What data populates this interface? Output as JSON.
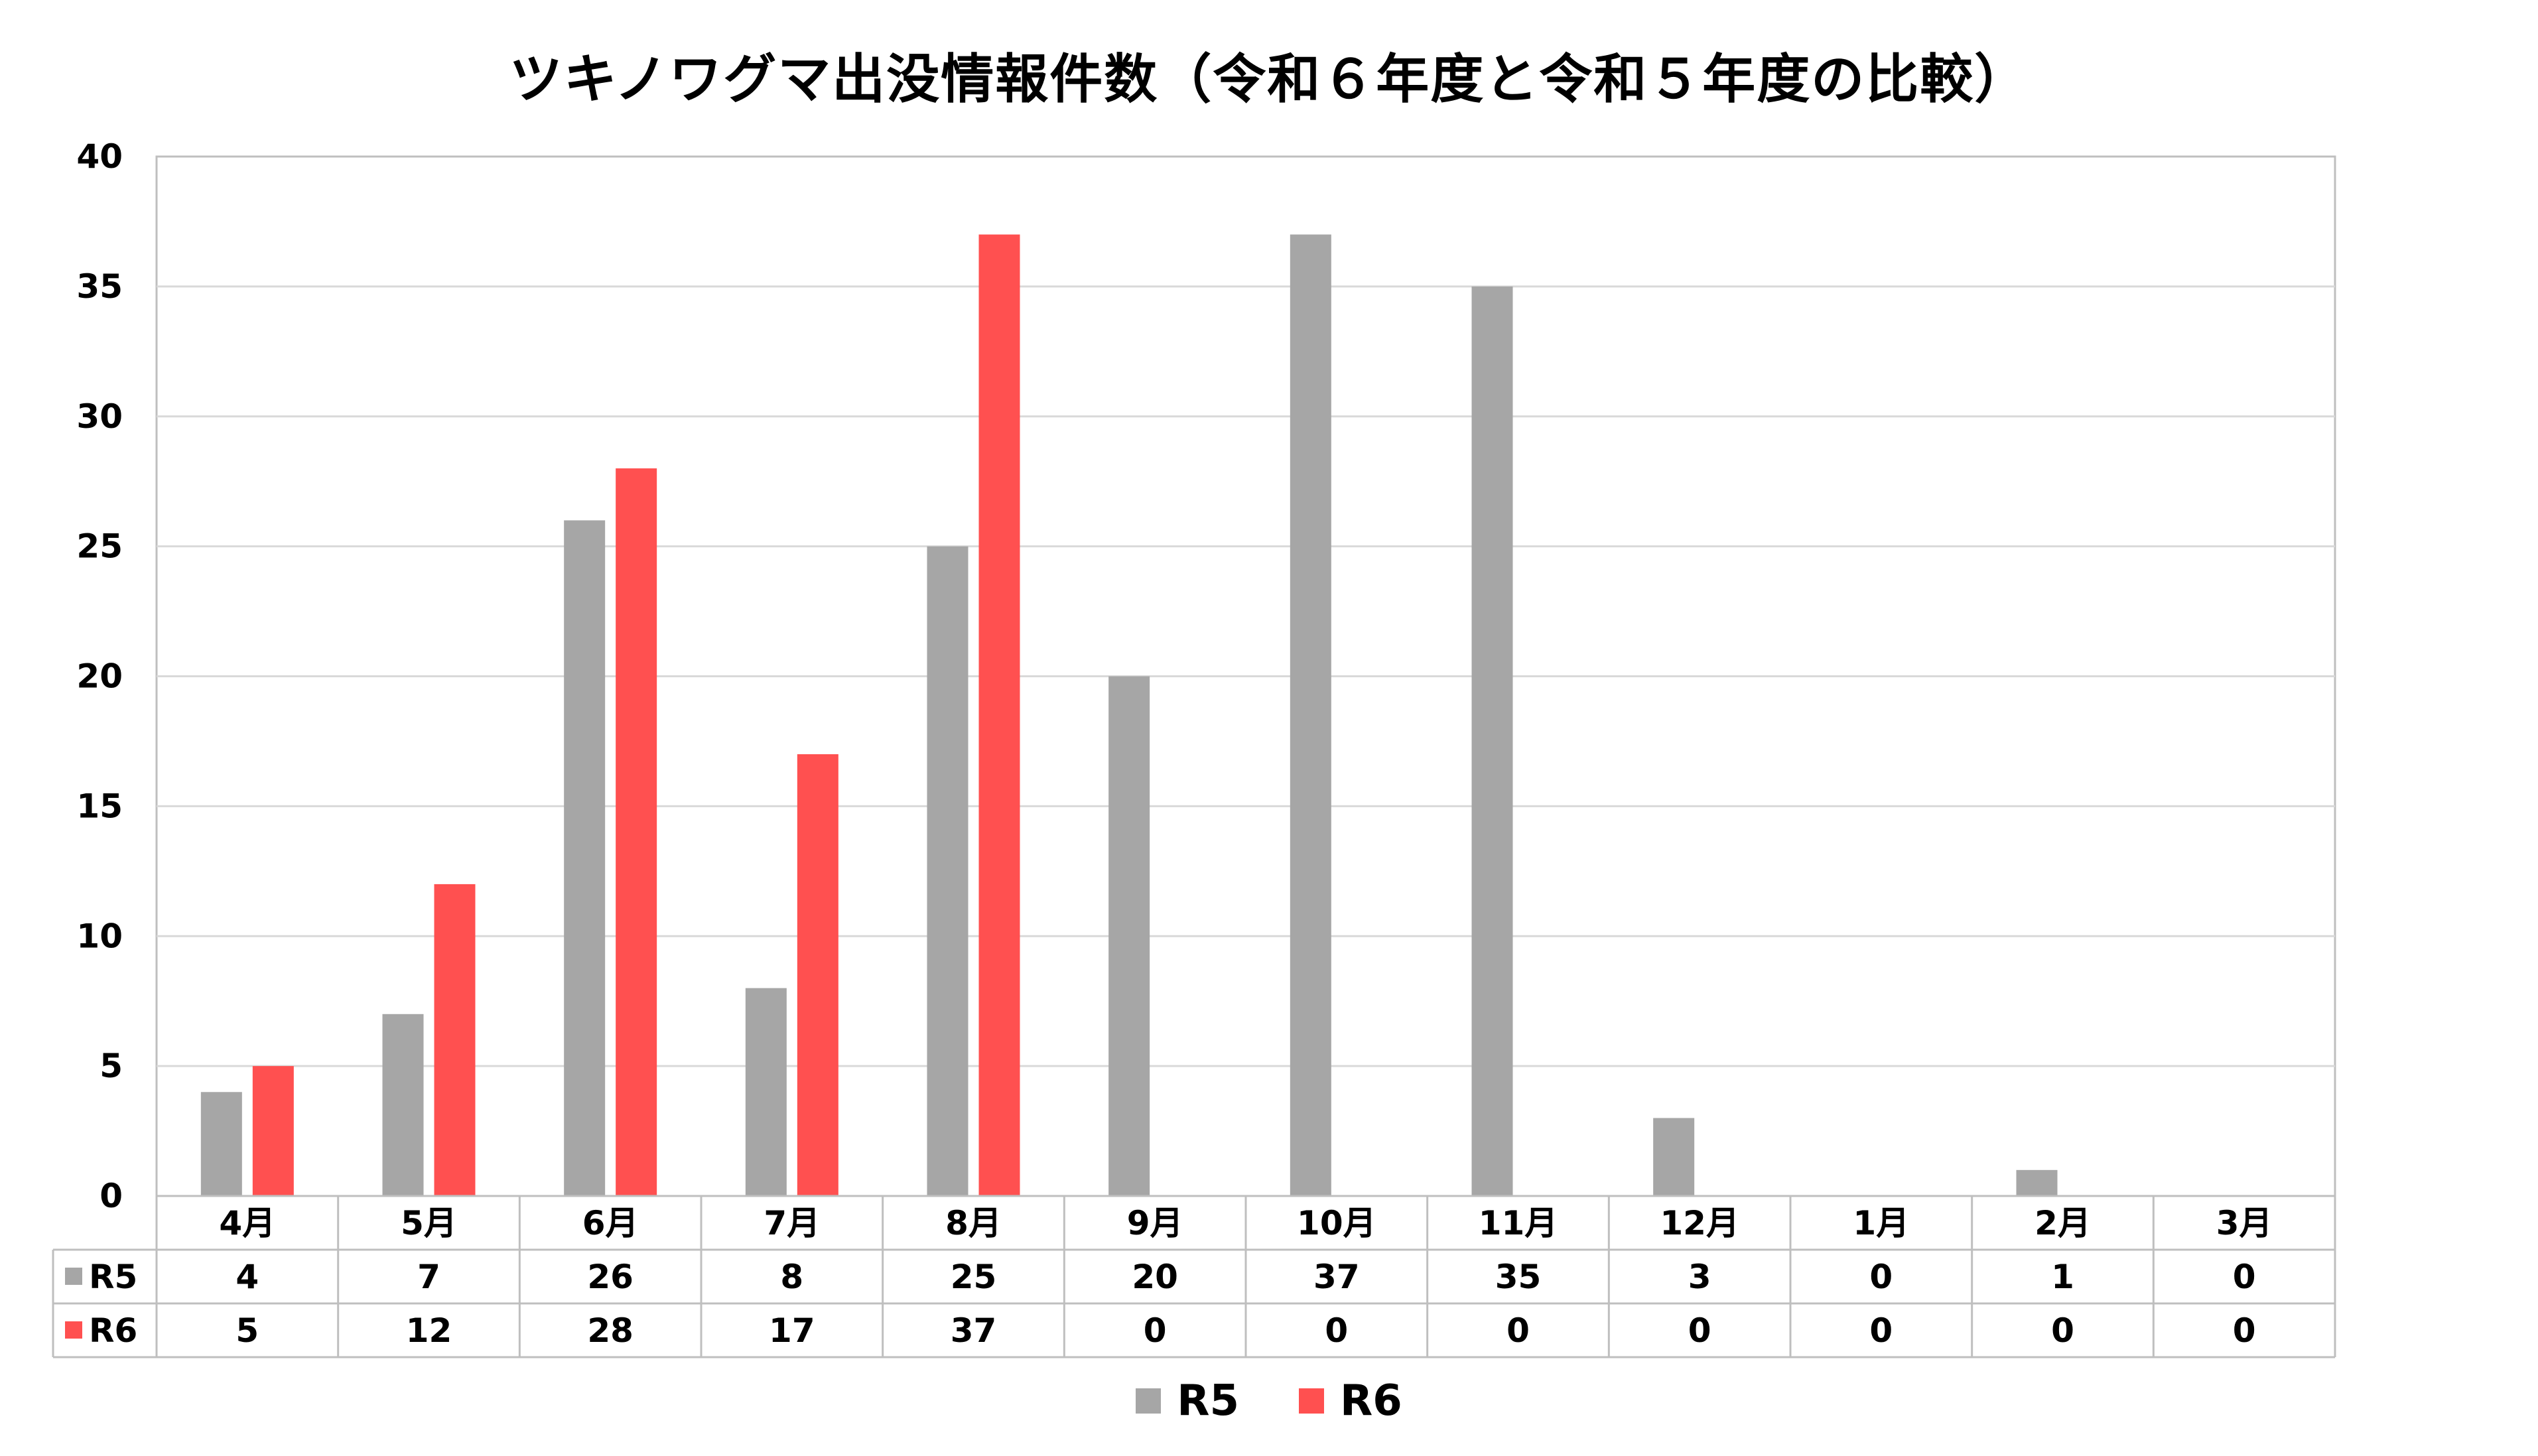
{
  "chart_data": {
    "type": "bar",
    "title": "ツキノワグマ出没情報件数（令和６年度と令和５年度の比較）",
    "xlabel": "",
    "ylabel": "",
    "ylim": [
      0,
      40
    ],
    "yticks": [
      "0",
      "5",
      "10",
      "15",
      "20",
      "25",
      "30",
      "35",
      "40"
    ],
    "categories": [
      "4月",
      "5月",
      "6月",
      "7月",
      "8月",
      "9月",
      "10月",
      "11月",
      "12月",
      "1月",
      "2月",
      "3月"
    ],
    "series": [
      {
        "name": "R5",
        "color": "#a6a6a6",
        "values": [
          4,
          7,
          26,
          8,
          25,
          20,
          37,
          35,
          3,
          0,
          1,
          0
        ]
      },
      {
        "name": "R6",
        "color": "#ff5050",
        "values": [
          5,
          12,
          28,
          17,
          37,
          0,
          0,
          0,
          0,
          0,
          0,
          0
        ]
      }
    ],
    "grid": true,
    "legend_position": "bottom",
    "data_table": true
  }
}
